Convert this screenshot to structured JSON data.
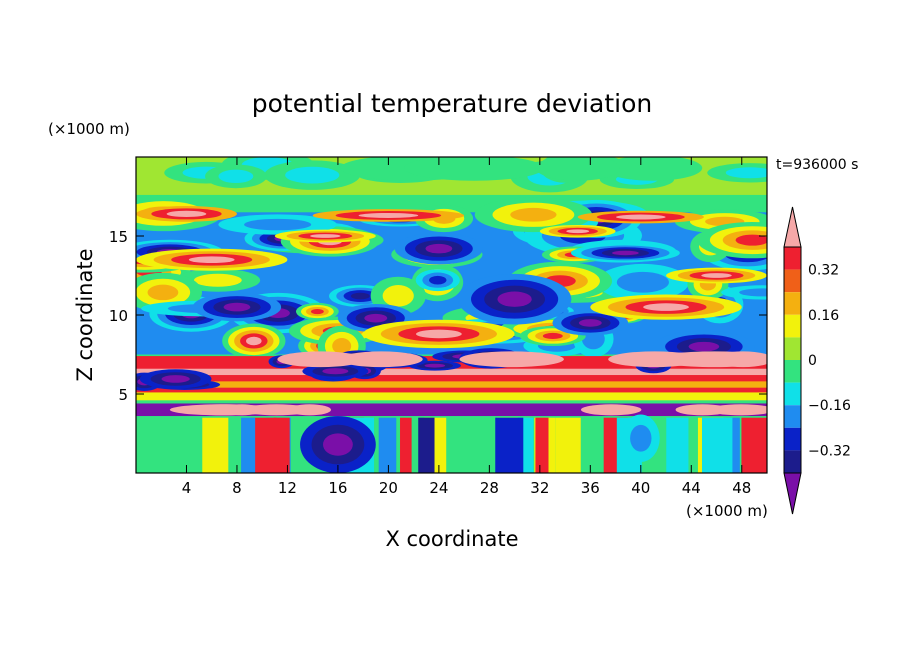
{
  "chart_data": {
    "type": "heatmap",
    "title": "potential temperature deviation",
    "xlabel": "X coordinate",
    "ylabel": "Z coordinate",
    "x_unit": "(×1000 m)",
    "y_unit": "(×1000 m)",
    "time_label": "t=936000 s",
    "xlim": [
      0,
      50
    ],
    "ylim": [
      0,
      20
    ],
    "x_ticks": [
      4,
      8,
      12,
      16,
      20,
      24,
      28,
      32,
      36,
      40,
      44,
      48
    ],
    "y_ticks": [
      5,
      10,
      15
    ],
    "colorbar": {
      "levels": [
        -0.4,
        -0.32,
        -0.24,
        -0.16,
        -0.08,
        0,
        0.08,
        0.16,
        0.24,
        0.32,
        0.4
      ],
      "tick_labels": [
        "0.32",
        "0.16",
        "0",
        "−0.16",
        "−0.32"
      ],
      "tick_values": [
        0.32,
        0.16,
        0,
        -0.16,
        -0.32
      ],
      "colors": [
        "#7a0fa8",
        "#1c1c8c",
        "#0a22c8",
        "#1f8cf0",
        "#10e0e8",
        "#33e37f",
        "#a0e632",
        "#f2f20c",
        "#f4b010",
        "#f06018",
        "#ee2030",
        "#f6a8a8"
      ]
    },
    "layers": [
      {
        "z_range": [
          0,
          4
        ],
        "description_shown": "vertical plumes",
        "dominant": "mixed"
      },
      {
        "z_range": [
          5,
          7
        ],
        "dominant": "positive"
      },
      {
        "z_range": [
          8,
          17
        ],
        "dominant": "mixed"
      },
      {
        "z_range": [
          17,
          20
        ],
        "dominant": "near-zero"
      }
    ]
  }
}
